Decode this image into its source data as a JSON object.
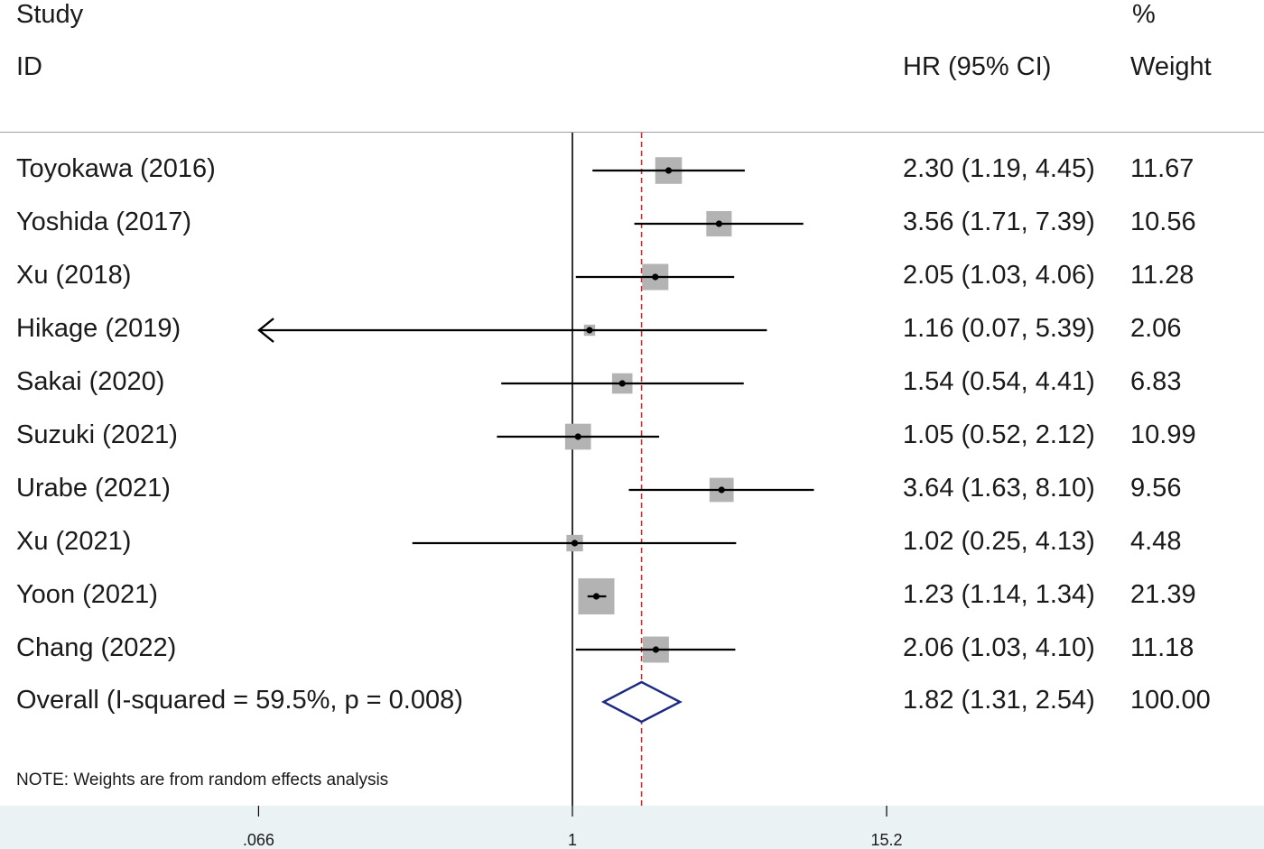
{
  "header": {
    "study_line1": "Study",
    "study_line2": "ID",
    "hr_label": "HR (95% CI)",
    "weight_line1": "%",
    "weight_line2": "Weight"
  },
  "note": "NOTE: Weights are from random effects analysis",
  "colors": {
    "box": "#b3b3b3",
    "ci_line": "#000000",
    "reference_line": "#b03a3a",
    "diamond": "#1b2a80",
    "axis_band": "#eaf2f3"
  },
  "chart_data": {
    "type": "forest",
    "scale": "log",
    "null_value": 1,
    "pooled_reference_line": 1.82,
    "axis_ticks": [
      {
        "value": 0.066,
        "label": ".066"
      },
      {
        "value": 1,
        "label": "1"
      },
      {
        "value": 15.2,
        "label": "15.2"
      }
    ],
    "studies": [
      {
        "label": "Toyokawa (2016)",
        "hr": 2.3,
        "lo": 1.19,
        "hi": 4.45,
        "weight": 11.67,
        "ci_text": "2.30 (1.19, 4.45)",
        "weight_text": "11.67"
      },
      {
        "label": "Yoshida (2017)",
        "hr": 3.56,
        "lo": 1.71,
        "hi": 7.39,
        "weight": 10.56,
        "ci_text": "3.56 (1.71, 7.39)",
        "weight_text": "10.56"
      },
      {
        "label": "Xu (2018)",
        "hr": 2.05,
        "lo": 1.03,
        "hi": 4.06,
        "weight": 11.28,
        "ci_text": "2.05 (1.03, 4.06)",
        "weight_text": "11.28"
      },
      {
        "label": "Hikage (2019)",
        "hr": 1.16,
        "lo": 0.07,
        "hi": 5.39,
        "weight": 2.06,
        "ci_text": "1.16 (0.07, 5.39)",
        "weight_text": "2.06",
        "arrow_left": true
      },
      {
        "label": "Sakai (2020)",
        "hr": 1.54,
        "lo": 0.54,
        "hi": 4.41,
        "weight": 6.83,
        "ci_text": "1.54 (0.54, 4.41)",
        "weight_text": "6.83"
      },
      {
        "label": "Suzuki (2021)",
        "hr": 1.05,
        "lo": 0.52,
        "hi": 2.12,
        "weight": 10.99,
        "ci_text": "1.05 (0.52, 2.12)",
        "weight_text": "10.99"
      },
      {
        "label": "Urabe (2021)",
        "hr": 3.64,
        "lo": 1.63,
        "hi": 8.1,
        "weight": 9.56,
        "ci_text": "3.64 (1.63, 8.10)",
        "weight_text": "9.56"
      },
      {
        "label": "Xu (2021)",
        "hr": 1.02,
        "lo": 0.25,
        "hi": 4.13,
        "weight": 4.48,
        "ci_text": "1.02 (0.25, 4.13)",
        "weight_text": "4.48"
      },
      {
        "label": "Yoon (2021)",
        "hr": 1.23,
        "lo": 1.14,
        "hi": 1.34,
        "weight": 21.39,
        "ci_text": "1.23 (1.14, 1.34)",
        "weight_text": "21.39"
      },
      {
        "label": "Chang (2022)",
        "hr": 2.06,
        "lo": 1.03,
        "hi": 4.1,
        "weight": 11.18,
        "ci_text": "2.06 (1.03, 4.10)",
        "weight_text": "11.18"
      }
    ],
    "overall": {
      "label": "Overall  (I-squared = 59.5%, p = 0.008)",
      "hr": 1.82,
      "lo": 1.31,
      "hi": 2.54,
      "weight": 100.0,
      "ci_text": "1.82 (1.31, 2.54)",
      "weight_text": "100.00"
    }
  }
}
